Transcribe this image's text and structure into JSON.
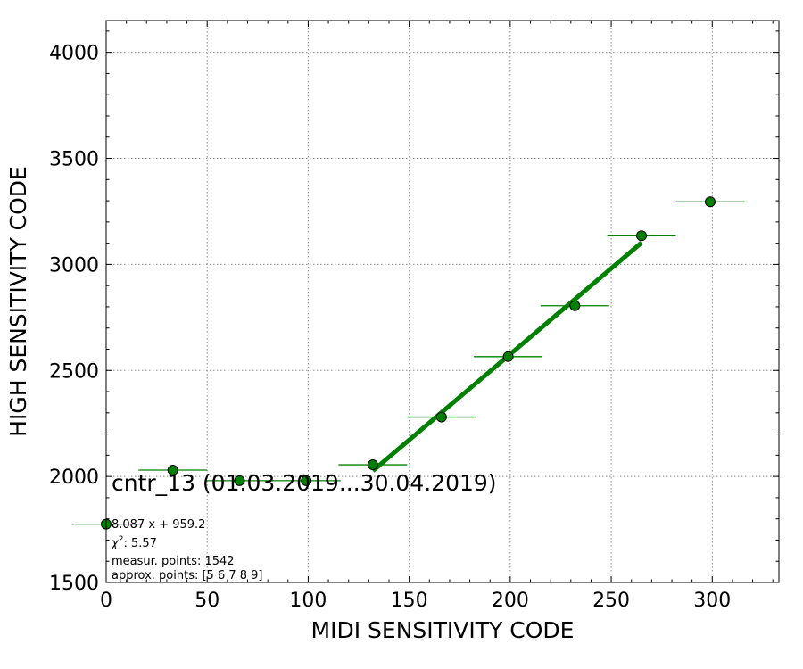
{
  "chart_data": {
    "type": "scatter",
    "xlabel": "MIDI SENSITIVITY CODE",
    "ylabel": "HIGH SENSITIVITY CODE",
    "xlim": [
      0,
      333
    ],
    "ylim": [
      1500,
      4150
    ],
    "x_ticks": [
      0,
      50,
      100,
      150,
      200,
      250,
      300
    ],
    "y_ticks": [
      1500,
      2000,
      2500,
      3000,
      3500,
      4000
    ],
    "x_minor_step": 10,
    "y_minor_step": 100,
    "grid": true,
    "series": [
      {
        "kind": "points_with_xerr",
        "color": "#008000",
        "points": [
          {
            "x": 0,
            "y": 1775,
            "xerr": 17
          },
          {
            "x": 33,
            "y": 2030,
            "xerr": 17
          },
          {
            "x": 66,
            "y": 1980,
            "xerr": 17
          },
          {
            "x": 99,
            "y": 1980,
            "xerr": 17
          },
          {
            "x": 132,
            "y": 2055,
            "xerr": 17
          },
          {
            "x": 166,
            "y": 2280,
            "xerr": 17
          },
          {
            "x": 199,
            "y": 2565,
            "xerr": 17
          },
          {
            "x": 232,
            "y": 2805,
            "xerr": 17
          },
          {
            "x": 265,
            "y": 3135,
            "xerr": 17
          },
          {
            "x": 299,
            "y": 3295,
            "xerr": 17
          }
        ]
      },
      {
        "kind": "fit_line",
        "color": "#008000",
        "slope": 8.087,
        "intercept": 959.2,
        "x_range": [
          132,
          265
        ]
      }
    ],
    "annotation": {
      "title": "cntr_13 (01.03.2019...30.04.2019)",
      "fit": "8.087 x + 959.2",
      "chi_symbol": "χ",
      "chi_exp": "2",
      "chi_value": ": 5.57",
      "measur": "measur. points: 1542",
      "approx": "approx. points: [5 6 7 8 9]"
    }
  }
}
